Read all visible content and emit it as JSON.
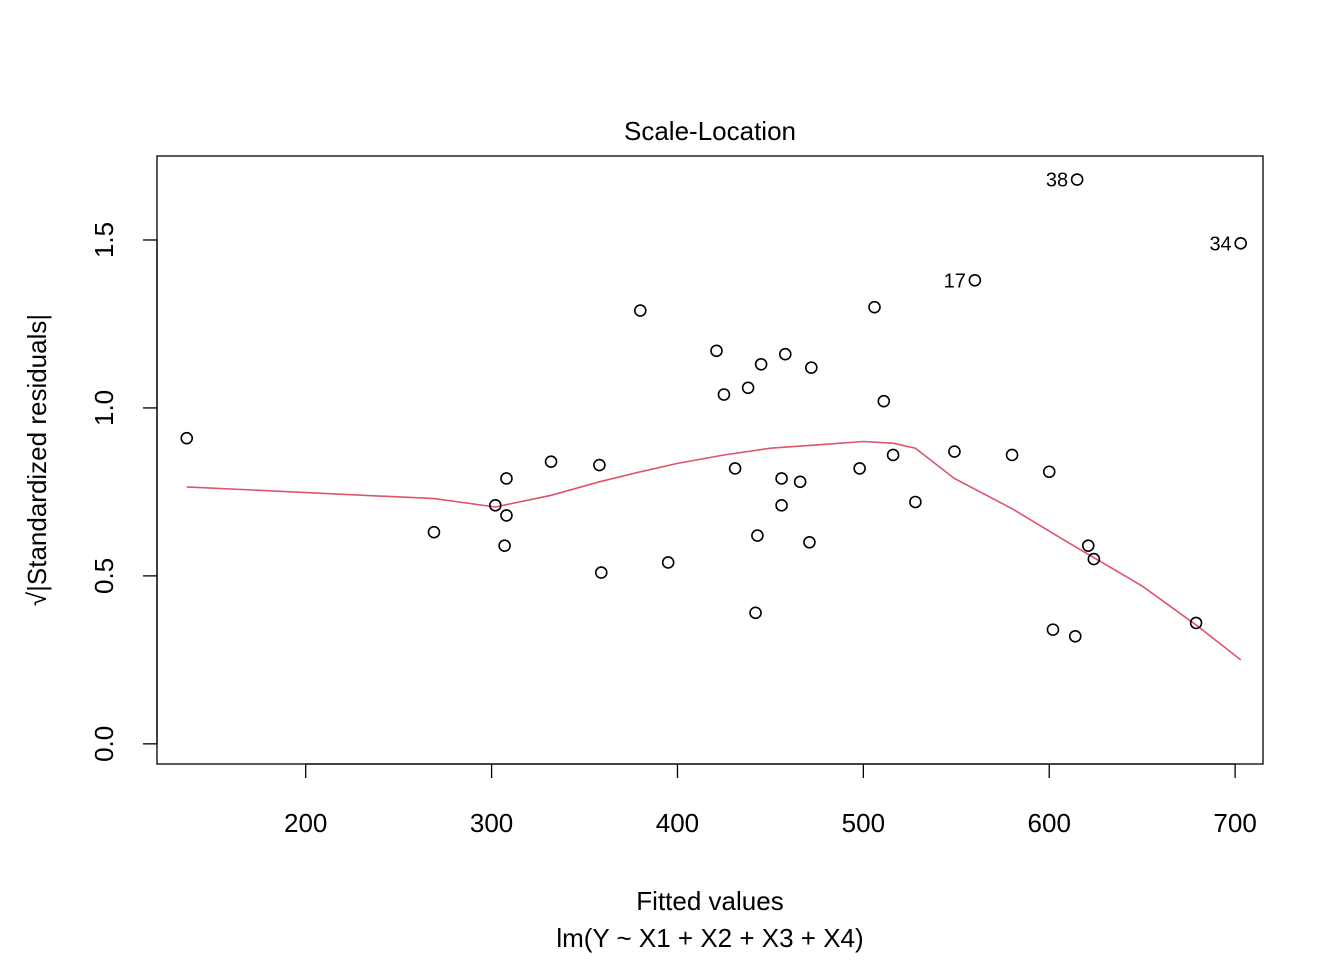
{
  "chart_data": {
    "type": "scatter",
    "title": "Scale-Location",
    "xlabel": "Fitted values",
    "subtitle": "lm(Y ~ X1 + X2 + X3 + X4)",
    "ylabel": "√|Standardized residuals|",
    "xlim": [
      120,
      715
    ],
    "ylim": [
      -0.06,
      1.75
    ],
    "x_ticks": [
      200,
      300,
      400,
      500,
      600,
      700
    ],
    "y_ticks": [
      0.0,
      0.5,
      1.0,
      1.5
    ],
    "x_tick_labels": [
      "200",
      "300",
      "400",
      "500",
      "600",
      "700"
    ],
    "y_tick_labels": [
      "0.0",
      "0.5",
      "1.0",
      "1.5"
    ],
    "grid": false,
    "points": [
      {
        "x": 136,
        "y": 0.91
      },
      {
        "x": 269,
        "y": 0.63
      },
      {
        "x": 302,
        "y": 0.71
      },
      {
        "x": 307,
        "y": 0.59
      },
      {
        "x": 308,
        "y": 0.68
      },
      {
        "x": 308,
        "y": 0.79
      },
      {
        "x": 332,
        "y": 0.84
      },
      {
        "x": 358,
        "y": 0.83
      },
      {
        "x": 359,
        "y": 0.51
      },
      {
        "x": 380,
        "y": 1.29
      },
      {
        "x": 395,
        "y": 0.54
      },
      {
        "x": 421,
        "y": 1.17
      },
      {
        "x": 425,
        "y": 1.04
      },
      {
        "x": 431,
        "y": 0.82
      },
      {
        "x": 438,
        "y": 1.06
      },
      {
        "x": 442,
        "y": 0.39
      },
      {
        "x": 443,
        "y": 0.62
      },
      {
        "x": 445,
        "y": 1.13
      },
      {
        "x": 456,
        "y": 0.79
      },
      {
        "x": 456,
        "y": 0.71
      },
      {
        "x": 458,
        "y": 1.16
      },
      {
        "x": 466,
        "y": 0.78
      },
      {
        "x": 471,
        "y": 0.6
      },
      {
        "x": 472,
        "y": 1.12
      },
      {
        "x": 498,
        "y": 0.82
      },
      {
        "x": 506,
        "y": 1.3
      },
      {
        "x": 511,
        "y": 1.02
      },
      {
        "x": 516,
        "y": 0.86
      },
      {
        "x": 528,
        "y": 0.72
      },
      {
        "x": 549,
        "y": 0.87
      },
      {
        "x": 560,
        "y": 1.38,
        "label": "17"
      },
      {
        "x": 580,
        "y": 0.86
      },
      {
        "x": 600,
        "y": 0.81
      },
      {
        "x": 602,
        "y": 0.34
      },
      {
        "x": 614,
        "y": 0.32
      },
      {
        "x": 615,
        "y": 1.68,
        "label": "38"
      },
      {
        "x": 621,
        "y": 0.59
      },
      {
        "x": 624,
        "y": 0.55
      },
      {
        "x": 679,
        "y": 0.36
      },
      {
        "x": 703,
        "y": 1.49,
        "label": "34"
      }
    ],
    "smooth_line": {
      "color": "#DF536B",
      "x": [
        136,
        269,
        302,
        332,
        358,
        380,
        400,
        425,
        450,
        475,
        500,
        516,
        528,
        549,
        580,
        610,
        650,
        680,
        703
      ],
      "y": [
        0.765,
        0.73,
        0.705,
        0.74,
        0.78,
        0.81,
        0.835,
        0.86,
        0.88,
        0.89,
        0.9,
        0.895,
        0.88,
        0.79,
        0.7,
        0.6,
        0.47,
        0.35,
        0.25
      ]
    },
    "point_color": "#000000"
  }
}
